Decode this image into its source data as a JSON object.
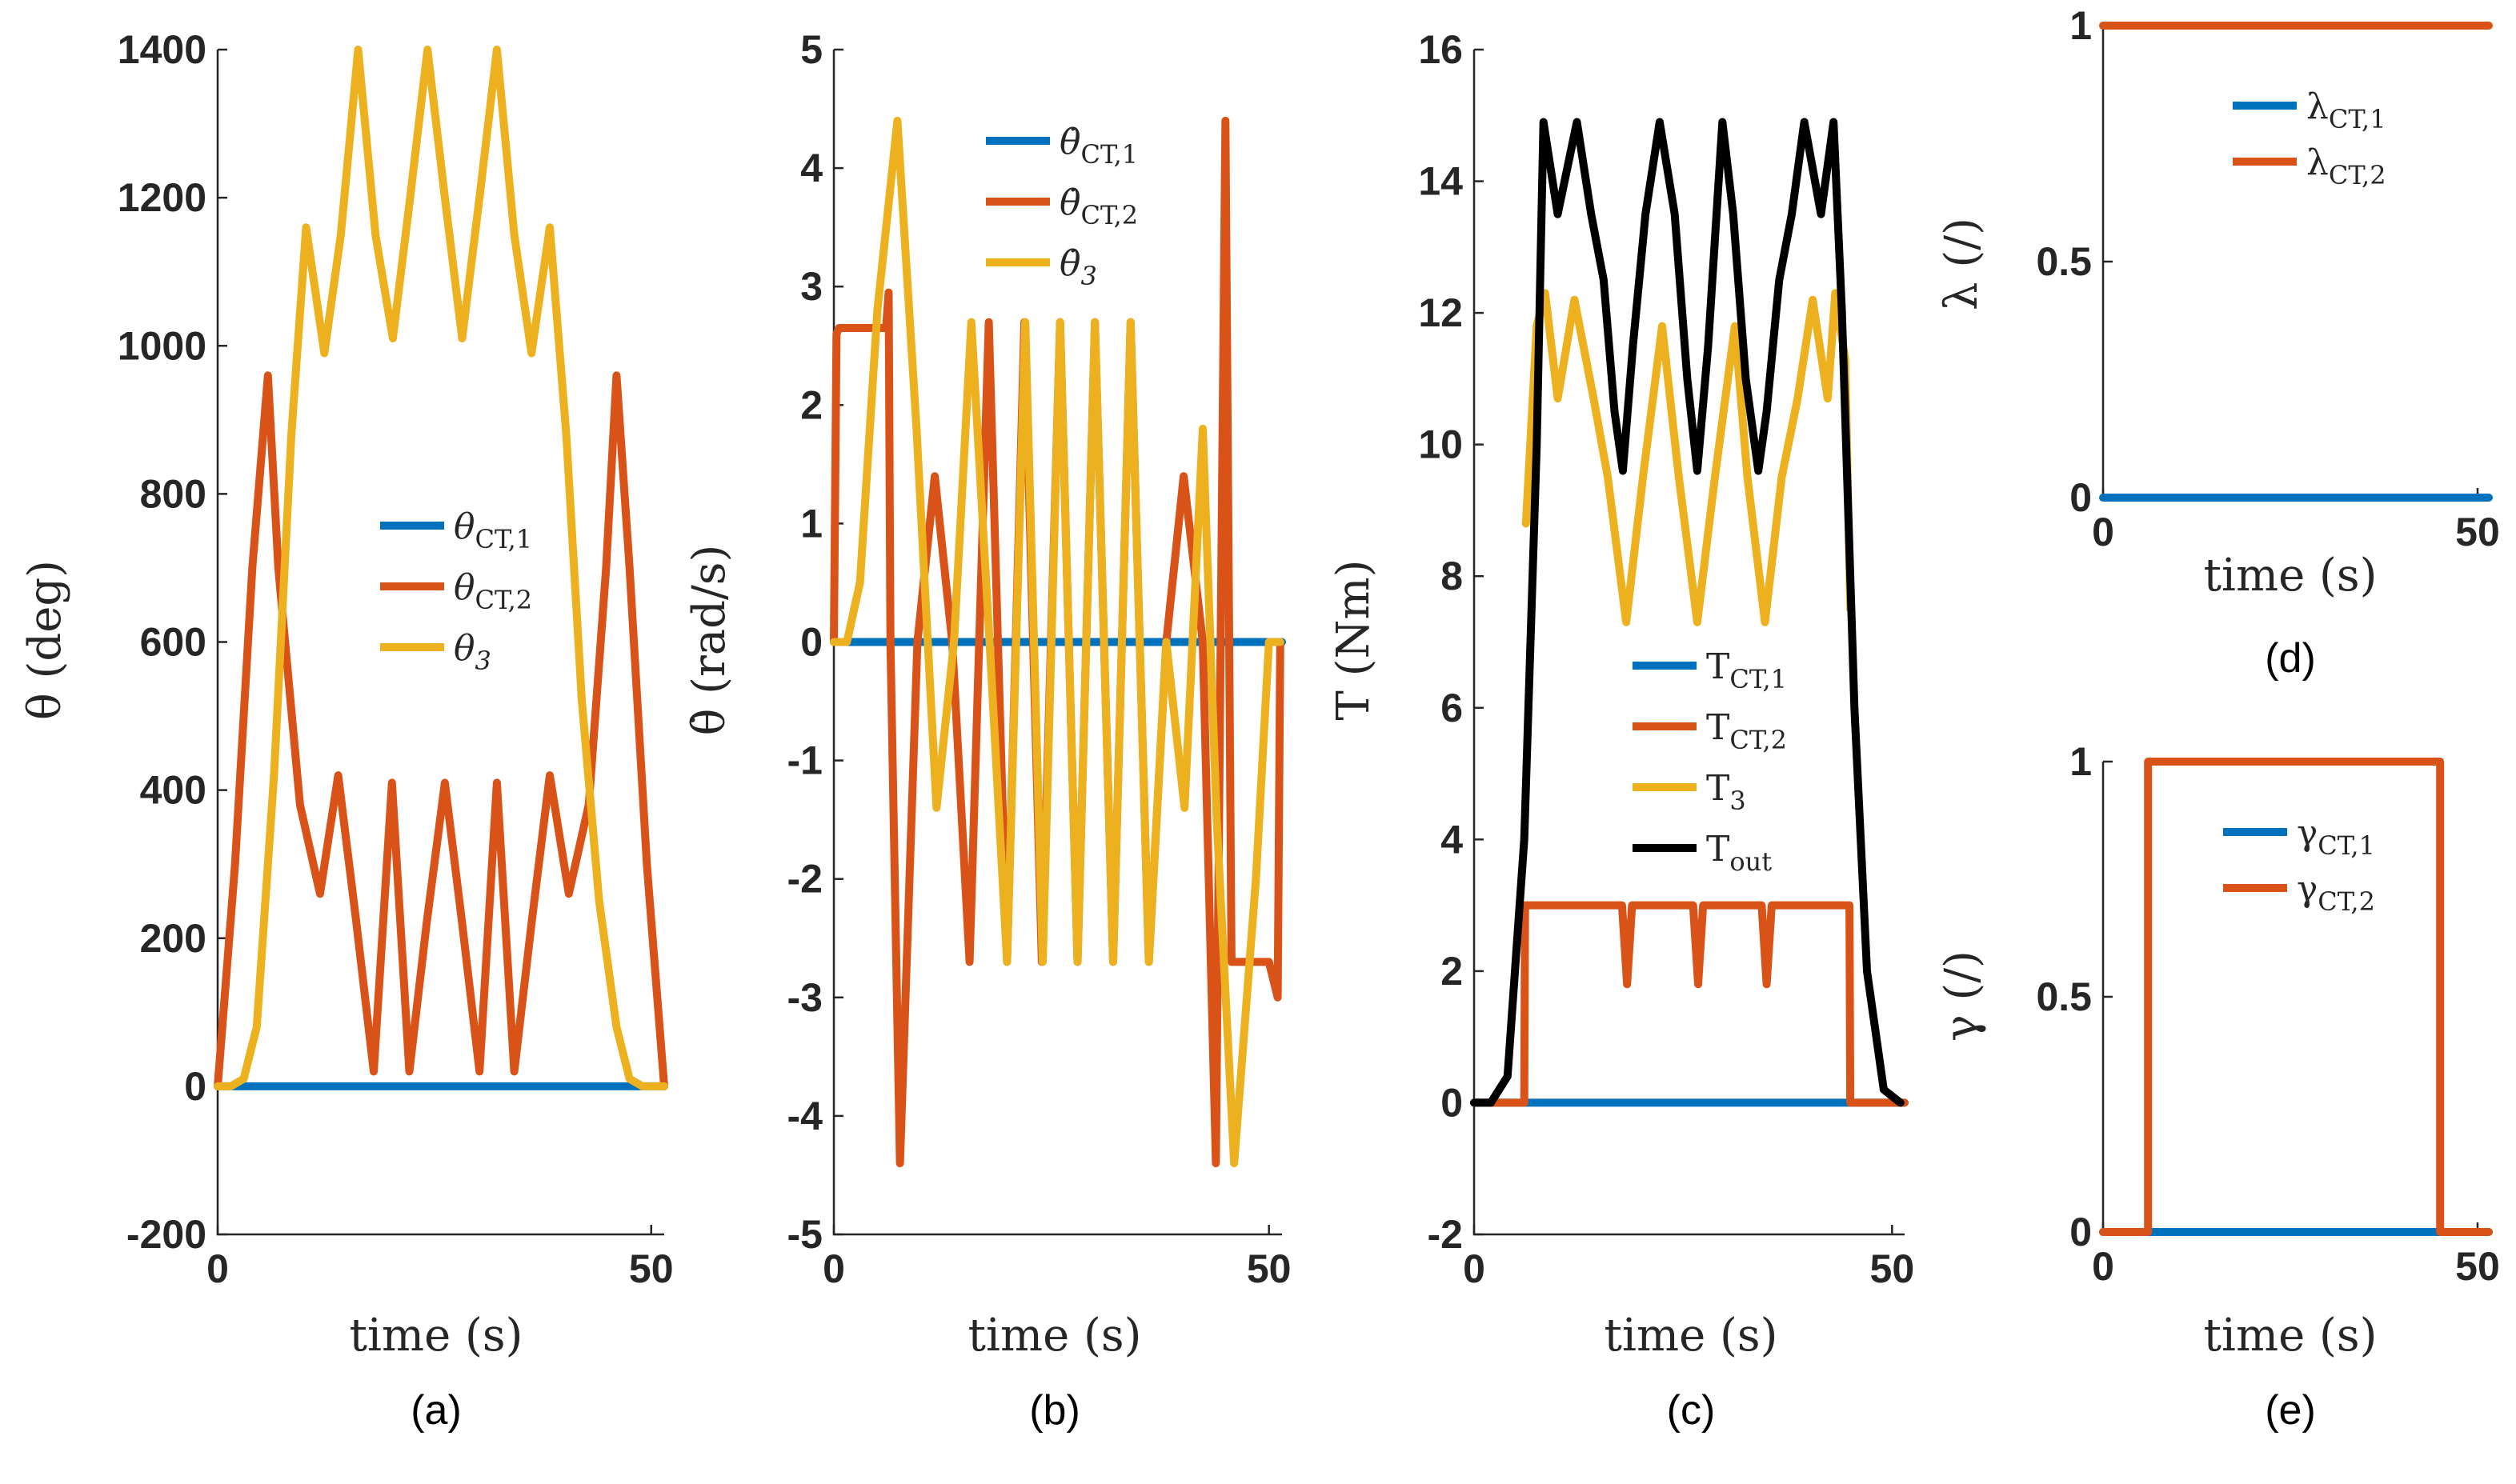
{
  "colors": {
    "blue": "#0072BD",
    "orange": "#D95319",
    "yellow": "#EDB120",
    "black": "#000000"
  },
  "chart_data": [
    {
      "id": "a",
      "type": "line",
      "caption": "(a)",
      "xlabel": "time (s)",
      "ylabel": "θ (deg)",
      "xlim": [
        0,
        51.5
      ],
      "ylim": [
        -200,
        1400
      ],
      "xticks": [
        0,
        50
      ],
      "yticks": [
        -200,
        0,
        200,
        400,
        600,
        800,
        1000,
        1200,
        1400
      ],
      "legend_position": "center",
      "series": [
        {
          "name": "θCT,1",
          "color": "blue",
          "x": [
            0,
            51.5
          ],
          "y": [
            0,
            0
          ]
        },
        {
          "name": "θCT,2",
          "color": "orange",
          "x": [
            0,
            2,
            4,
            5.8,
            7,
            9.5,
            11.8,
            13.9,
            16,
            18,
            20.1,
            22.1,
            24.1,
            26.2,
            28.2,
            30.2,
            32.2,
            34.2,
            36.2,
            38.3,
            40.5,
            42.8,
            44.8,
            46,
            47.5,
            49.5,
            51.5
          ],
          "y": [
            0,
            300,
            700,
            960,
            700,
            380,
            260,
            420,
            220,
            20,
            410,
            20,
            220,
            410,
            220,
            20,
            410,
            20,
            220,
            420,
            260,
            380,
            700,
            960,
            700,
            300,
            0
          ]
        },
        {
          "name": "θ3",
          "color": "yellow",
          "x": [
            0,
            1.5,
            3,
            4.5,
            6.5,
            8.5,
            10.2,
            12.3,
            14.2,
            16.2,
            18.2,
            20.2,
            22.2,
            24.2,
            26.2,
            28.2,
            30.2,
            32.2,
            34.2,
            36.2,
            38.3,
            40.2,
            42,
            44,
            46,
            47.5,
            49,
            50.5,
            51.5
          ],
          "y": [
            0,
            0,
            10,
            80,
            420,
            880,
            1160,
            990,
            1150,
            1400,
            1150,
            1010,
            1200,
            1400,
            1200,
            1010,
            1200,
            1400,
            1150,
            990,
            1160,
            880,
            520,
            250,
            80,
            10,
            0,
            0,
            0
          ]
        }
      ]
    },
    {
      "id": "b",
      "type": "line",
      "caption": "(b)",
      "xlabel": "time (s)",
      "ylabel": "θ̇ (rad/s)",
      "xlim": [
        0,
        51.5
      ],
      "ylim": [
        -5,
        5
      ],
      "xticks": [
        0,
        50
      ],
      "yticks": [
        -5,
        -4,
        -3,
        -2,
        -1,
        0,
        1,
        2,
        3,
        4,
        5
      ],
      "legend_position": "top-right",
      "series": [
        {
          "name": "θ̇CT,1",
          "color": "blue",
          "x": [
            0,
            51.5
          ],
          "y": [
            0,
            0
          ]
        },
        {
          "name": "θ̇CT,2",
          "color": "orange",
          "x": [
            0,
            0.3,
            0.6,
            6,
            6.3,
            6.5,
            7.6,
            9.6,
            11.6,
            13.6,
            15.6,
            17.8,
            19.9,
            21.9,
            23.9,
            26,
            28,
            30,
            32.1,
            34.1,
            36.2,
            38.2,
            40.2,
            42.4,
            43.9,
            45,
            45.7,
            50,
            51,
            51.3
          ],
          "y": [
            0,
            2.6,
            2.65,
            2.65,
            2.95,
            0,
            -4.4,
            0,
            1.4,
            0,
            -2.7,
            2.7,
            -2.7,
            2.7,
            -2.7,
            2.7,
            -2.7,
            2.7,
            -2.7,
            2.7,
            -2.7,
            0,
            1.4,
            0,
            -4.4,
            4.4,
            -2.7,
            -2.7,
            -3.0,
            0
          ]
        },
        {
          "name": "θ̇3",
          "color": "yellow",
          "x": [
            0,
            1.5,
            3,
            5,
            7.3,
            9.5,
            11.8,
            13.8,
            15.8,
            17.9,
            19.9,
            22,
            24,
            26,
            28,
            30,
            32.1,
            34.1,
            36.2,
            38.2,
            40.3,
            42.4,
            44,
            46,
            48.5,
            50,
            51.3
          ],
          "y": [
            0,
            0,
            0.5,
            2.8,
            4.4,
            1.8,
            -1.4,
            0,
            2.7,
            0,
            -2.7,
            2.7,
            -2.7,
            2.7,
            -2.7,
            2.7,
            -2.7,
            2.7,
            -2.7,
            0,
            -1.4,
            1.8,
            -1.5,
            -4.4,
            -2.0,
            0,
            0
          ]
        }
      ]
    },
    {
      "id": "c",
      "type": "line",
      "caption": "(c)",
      "xlabel": "time (s)",
      "ylabel": "T (Nm)",
      "xlim": [
        0,
        51.5
      ],
      "ylim": [
        -2,
        16
      ],
      "xticks": [
        0,
        50
      ],
      "yticks": [
        -2,
        0,
        2,
        4,
        6,
        8,
        10,
        12,
        14,
        16
      ],
      "legend_position": "center-right",
      "series": [
        {
          "name": "TCT,1",
          "color": "blue",
          "x": [
            0,
            51.5
          ],
          "y": [
            0,
            0
          ]
        },
        {
          "name": "TCT,2",
          "color": "orange",
          "x": [
            0,
            6,
            6.1,
            17.7,
            18.3,
            18.9,
            26.2,
            26.8,
            27.4,
            34.4,
            35,
            35.6,
            44.9,
            45,
            51.5
          ],
          "y": [
            0,
            0,
            3,
            3,
            1.8,
            3,
            3,
            1.8,
            3,
            3,
            1.8,
            3,
            3,
            0,
            0
          ]
        },
        {
          "name": "T3",
          "color": "yellow",
          "x": [
            6.2,
            7.5,
            8.5,
            10,
            12,
            14.3,
            16,
            18.2,
            20.2,
            22.5,
            24.5,
            26.7,
            28.8,
            31.2,
            32.7,
            34.8,
            36.8,
            38.7,
            40.5,
            42.3,
            43.2,
            44.4,
            45
          ],
          "y": [
            8.8,
            11.8,
            12.3,
            10.7,
            12.2,
            10.7,
            9.5,
            7.3,
            9.5,
            11.8,
            9.5,
            7.3,
            9.5,
            11.8,
            9.5,
            7.3,
            9.5,
            10.7,
            12.2,
            10.7,
            12.3,
            11.3,
            7.5
          ]
        },
        {
          "name": "Tout",
          "color": "black",
          "x": [
            0,
            2,
            4,
            6,
            7.5,
            8.3,
            10,
            12.3,
            14,
            15.5,
            16.8,
            17.8,
            19,
            20.5,
            22.2,
            24,
            25.5,
            26.7,
            28,
            29.7,
            31,
            32.5,
            34,
            35,
            36.5,
            38,
            39.5,
            41.5,
            43,
            44,
            45.5,
            47,
            49,
            51
          ],
          "y": [
            0,
            0,
            0.4,
            4,
            10,
            14.9,
            13.5,
            14.9,
            13.5,
            12.5,
            10.5,
            9.6,
            11.5,
            13.5,
            14.9,
            13.5,
            11,
            9.6,
            11.5,
            14.9,
            13.5,
            11,
            9.6,
            10.5,
            12.5,
            13.5,
            14.9,
            13.5,
            14.9,
            12,
            6,
            2,
            0.2,
            0
          ]
        }
      ]
    },
    {
      "id": "d",
      "type": "line",
      "caption": "(d)",
      "xlabel": "time (s)",
      "ylabel": "λ (/)",
      "xlim": [
        0,
        51.5
      ],
      "ylim": [
        0,
        1
      ],
      "xticks": [
        0,
        50
      ],
      "yticks": [
        0,
        0.5,
        1
      ],
      "legend_position": "top-center",
      "series": [
        {
          "name": "λCT,1",
          "color": "blue",
          "x": [
            0,
            51.5
          ],
          "y": [
            0,
            0
          ]
        },
        {
          "name": "λCT,2",
          "color": "orange",
          "x": [
            0,
            51.5
          ],
          "y": [
            1,
            1
          ]
        }
      ]
    },
    {
      "id": "e",
      "type": "line",
      "caption": "(e)",
      "xlabel": "time (s)",
      "ylabel": "γ (/)",
      "xlim": [
        0,
        51.5
      ],
      "ylim": [
        0,
        1
      ],
      "xticks": [
        0,
        50
      ],
      "yticks": [
        0,
        0.5,
        1
      ],
      "legend_position": "top-center",
      "series": [
        {
          "name": "γCT,1",
          "color": "blue",
          "x": [
            0,
            51.5
          ],
          "y": [
            0,
            0
          ]
        },
        {
          "name": "γCT,2",
          "color": "orange",
          "x": [
            0,
            6,
            6,
            45,
            45,
            51.5
          ],
          "y": [
            0,
            0,
            1,
            1,
            0,
            0
          ]
        }
      ]
    }
  ],
  "legend_labels": {
    "a": [
      {
        "base": "θ",
        "sub": "CT,1",
        "italic": true
      },
      {
        "base": "θ",
        "sub": "CT,2",
        "italic": true
      },
      {
        "base": "θ",
        "sub": "3",
        "italic": true
      }
    ],
    "b": [
      {
        "base": "θ̇",
        "sub": "CT,1",
        "italic": true
      },
      {
        "base": "θ̇",
        "sub": "CT,2",
        "italic": true
      },
      {
        "base": "θ̇",
        "sub": "3",
        "italic": true
      }
    ],
    "c": [
      {
        "base": "T",
        "sub": "CT,1",
        "italic": false
      },
      {
        "base": "T",
        "sub": "CT,2",
        "italic": false
      },
      {
        "base": "T",
        "sub": "3",
        "italic": false
      },
      {
        "base": "T",
        "sub": "out",
        "italic": false
      }
    ],
    "d": [
      {
        "base": "λ",
        "sub": "CT,1",
        "italic": false
      },
      {
        "base": "λ",
        "sub": "CT,2",
        "italic": false
      }
    ],
    "e": [
      {
        "base": "γ",
        "sub": "CT,1",
        "italic": false
      },
      {
        "base": "γ",
        "sub": "CT,2",
        "italic": false
      }
    ]
  }
}
